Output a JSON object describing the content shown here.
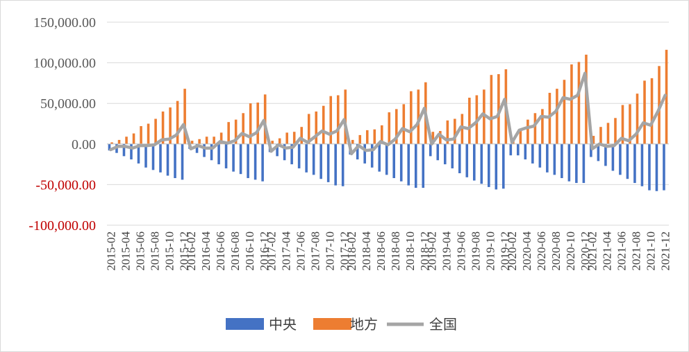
{
  "chart_data": {
    "type": "bar",
    "title": "",
    "xlabel": "",
    "ylabel": "",
    "ylim": [
      -100000,
      150000
    ],
    "grid": true,
    "legend_position": "bottom",
    "yticks": [
      150000,
      100000,
      50000,
      0,
      -50000,
      -100000
    ],
    "ytick_labels": [
      "150,000.00",
      "100,000.00",
      "50,000.00",
      "0.00",
      "-50,000.00",
      "-100,000.00"
    ],
    "negative_tick_color": "#c00000",
    "positive_tick_color": "#595959",
    "categories": [
      "2015-02",
      "2015-03",
      "2015-04",
      "2015-05",
      "2015-06",
      "2015-07",
      "2015-08",
      "2015-09",
      "2015-10",
      "2015-11",
      "2015-12",
      "2016-02",
      "2016-03",
      "2016-04",
      "2016-05",
      "2016-06",
      "2016-07",
      "2016-08",
      "2016-09",
      "2016-10",
      "2016-11",
      "2016-12",
      "2017-02",
      "2017-03",
      "2017-04",
      "2017-05",
      "2017-06",
      "2017-07",
      "2017-08",
      "2017-09",
      "2017-10",
      "2017-11",
      "2017-12",
      "2018-02",
      "2018-03",
      "2018-04",
      "2018-05",
      "2018-06",
      "2018-07",
      "2018-08",
      "2018-09",
      "2018-10",
      "2018-11",
      "2018-12",
      "2019-02",
      "2019-03",
      "2019-04",
      "2019-05",
      "2019-06",
      "2019-07",
      "2019-08",
      "2019-09",
      "2019-10",
      "2019-11",
      "2019-12",
      "2020-02",
      "2020-03",
      "2020-04",
      "2020-05",
      "2020-06",
      "2020-07",
      "2020-08",
      "2020-09",
      "2020-10",
      "2020-11",
      "2020-12",
      "2021-02",
      "2021-03",
      "2021-04",
      "2021-05",
      "2021-06",
      "2021-07",
      "2021-08",
      "2021-09",
      "2021-10",
      "2021-11",
      "2021-12"
    ],
    "xtick_labels": [
      "2015-02",
      "2015-04",
      "2015-06",
      "2015-08",
      "2015-10",
      "2015-12",
      "2016-02",
      "2016-04",
      "2016-06",
      "2016-08",
      "2016-10",
      "2016-12",
      "2017-02",
      "2017-04",
      "2017-06",
      "2017-08",
      "2017-10",
      "2017-12",
      "2018-02",
      "2018-04",
      "2018-06",
      "2018-08",
      "2018-10",
      "2018-12",
      "2019-02",
      "2019-04",
      "2019-06",
      "2019-08",
      "2019-10",
      "2019-12",
      "2020-02",
      "2020-04",
      "2020-06",
      "2020-08",
      "2020-10",
      "2020-12",
      "2021-02",
      "2021-04",
      "2021-06",
      "2021-08",
      "2021-10",
      "2021-12"
    ],
    "series": [
      {
        "name": "中央",
        "type": "bar",
        "color": "#4472c4",
        "values": [
          -8000,
          -11000,
          -15000,
          -19000,
          -24000,
          -29000,
          -32000,
          -35000,
          -39000,
          -42000,
          -44000,
          -6000,
          -11000,
          -16000,
          -20000,
          -25000,
          -30000,
          -34000,
          -37000,
          -42000,
          -44000,
          -46000,
          -10000,
          -15000,
          -20000,
          -25000,
          -30000,
          -35000,
          -38000,
          -43000,
          -47000,
          -51000,
          -52000,
          -13000,
          -19000,
          -24000,
          -29000,
          -34000,
          -38000,
          -42000,
          -46000,
          -51000,
          -54000,
          -54000,
          -15000,
          -20000,
          -25000,
          -30000,
          -36000,
          -41000,
          -45000,
          -49000,
          -53000,
          -56000,
          -55000,
          -14000,
          -14000,
          -19000,
          -24000,
          -29000,
          -35000,
          -38000,
          -42000,
          -46000,
          -48000,
          -48000,
          -16000,
          -21000,
          -27000,
          -33000,
          -38000,
          -43000,
          -48000,
          -52000,
          -57000,
          -58000,
          -57000
        ]
      },
      {
        "name": "地方",
        "type": "bar",
        "color": "#ed7d31",
        "values": [
          2000,
          5000,
          9000,
          13000,
          22000,
          25000,
          31000,
          40000,
          45000,
          53000,
          68000,
          4000,
          6000,
          9000,
          9000,
          14000,
          27000,
          30000,
          38000,
          50000,
          51000,
          61000,
          4000,
          7000,
          14000,
          15000,
          21000,
          37000,
          40000,
          47000,
          59000,
          60000,
          67000,
          5000,
          11000,
          17000,
          18000,
          23000,
          39000,
          43000,
          49000,
          65000,
          67000,
          76000,
          15000,
          16000,
          29000,
          31000,
          37000,
          57000,
          60000,
          67000,
          85000,
          86000,
          92000,
          6000,
          16000,
          30000,
          38000,
          43000,
          63000,
          68000,
          79000,
          98000,
          101000,
          110000,
          10000,
          21000,
          26000,
          32000,
          48000,
          49000,
          62000,
          78000,
          81000,
          96000,
          116000
        ]
      },
      {
        "name": "全国",
        "type": "line",
        "color": "#a5a5a5",
        "values": [
          -7000,
          -3000,
          -3000,
          -5000,
          -2000,
          -2000,
          -1000,
          5000,
          6000,
          11000,
          24000,
          -6000,
          -2000,
          -5000,
          -5000,
          3000,
          1000,
          4000,
          13000,
          9000,
          14000,
          29000,
          -9000,
          -1000,
          -5000,
          -4000,
          7000,
          2000,
          9000,
          16000,
          12000,
          16000,
          30000,
          -12000,
          -2000,
          -8000,
          -7000,
          3000,
          -1000,
          6000,
          19000,
          15000,
          24000,
          44000,
          0,
          12000,
          5000,
          6000,
          21000,
          19000,
          26000,
          37000,
          31000,
          34000,
          55000,
          2000,
          17000,
          20000,
          22000,
          34000,
          33000,
          40000,
          57000,
          55000,
          60000,
          87000,
          -6000,
          0,
          -3000,
          -2000,
          7000,
          4000,
          12000,
          26000,
          23000,
          40000,
          60000
        ]
      }
    ],
    "legend": [
      {
        "label": "中央",
        "color": "#4472c4",
        "marker": "box"
      },
      {
        "label": "地方",
        "color": "#ed7d31",
        "marker": "box"
      },
      {
        "label": "全国",
        "color": "#a5a5a5",
        "marker": "line"
      }
    ]
  }
}
